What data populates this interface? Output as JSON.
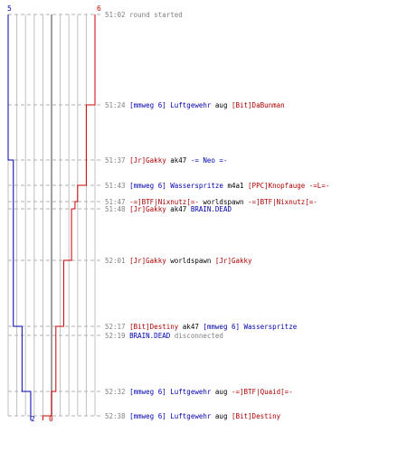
{
  "score": {
    "blue_start": "5",
    "red_start": "6",
    "blue_end": "2",
    "red_end": "0"
  },
  "colors": {
    "blue_team": "#0000aa",
    "red_team": "#cc0000",
    "grid": "#c0c0c0",
    "dashed_row": "#b0b0b0",
    "center_line": "#808080",
    "timestamp": "#808080"
  },
  "events": [
    {
      "time": "51:02",
      "parts": [
        {
          "text": "round started",
          "color": "gray"
        }
      ]
    },
    {
      "time": "51:24",
      "parts": [
        {
          "text": "[mmweg 6] Luftgewehr",
          "color": "blue"
        },
        {
          "text": " aug ",
          "color": "black"
        },
        {
          "text": "[Bit]DaBunman",
          "color": "red"
        }
      ]
    },
    {
      "time": "51:37",
      "parts": [
        {
          "text": "[Jr]Gakky",
          "color": "red"
        },
        {
          "text": " ak47 ",
          "color": "black"
        },
        {
          "text": "-= Neo =-",
          "color": "blue"
        }
      ]
    },
    {
      "time": "51:43",
      "parts": [
        {
          "text": "[mmweg 6] Wasserspritze",
          "color": "blue"
        },
        {
          "text": " m4a1 ",
          "color": "black"
        },
        {
          "text": "[PPC]Knopfauge -=L=-",
          "color": "red"
        }
      ]
    },
    {
      "time": "51:47",
      "parts": [
        {
          "text": "-=]BTF|Nixnutz[=-",
          "color": "red"
        },
        {
          "text": " worldspawn ",
          "color": "black"
        },
        {
          "text": "-=]BTF|Nixnutz[=-",
          "color": "red"
        }
      ]
    },
    {
      "time": "51:48",
      "parts": [
        {
          "text": "[Jr]Gakky",
          "color": "red"
        },
        {
          "text": " ak47 ",
          "color": "black"
        },
        {
          "text": "BRAIN.DEAD",
          "color": "blue"
        }
      ]
    },
    {
      "time": "52:01",
      "parts": [
        {
          "text": "[Jr]Gakky",
          "color": "red"
        },
        {
          "text": " worldspawn ",
          "color": "black"
        },
        {
          "text": "[Jr]Gakky",
          "color": "red"
        }
      ]
    },
    {
      "time": "52:17",
      "parts": [
        {
          "text": "[Bit]Destiny",
          "color": "red"
        },
        {
          "text": " ak47 ",
          "color": "black"
        },
        {
          "text": "[mmweg 6] Wasserspritze",
          "color": "blue"
        }
      ]
    },
    {
      "time": "52:19",
      "parts": [
        {
          "text": "BRAIN.DEAD",
          "color": "blue"
        },
        {
          "text": " disconnected",
          "color": "gray"
        }
      ]
    },
    {
      "time": "52:32",
      "parts": [
        {
          "text": "[mmweg 6] Luftgewehr",
          "color": "blue"
        },
        {
          "text": " aug ",
          "color": "black"
        },
        {
          "text": "-=]BTF|Quaid[=-",
          "color": "red"
        }
      ]
    },
    {
      "time": "52:38",
      "parts": [
        {
          "text": "[mmweg 6] Luftgewehr",
          "color": "blue"
        },
        {
          "text": " aug ",
          "color": "black"
        },
        {
          "text": "[Bit]Destiny",
          "color": "red"
        }
      ]
    }
  ]
}
